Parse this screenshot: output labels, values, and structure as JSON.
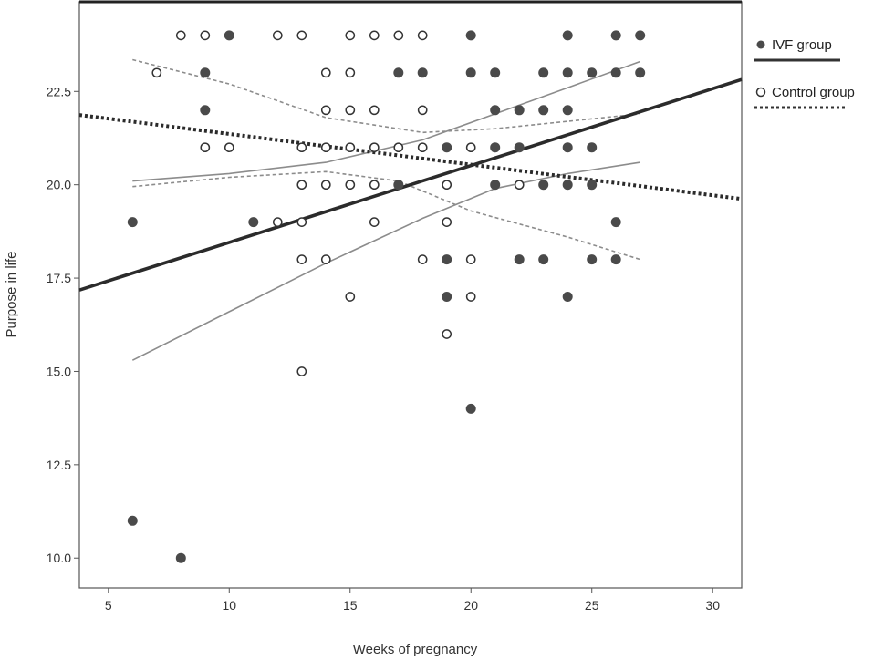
{
  "chart_data": {
    "type": "scatter",
    "xlabel": "Weeks of pregnancy",
    "ylabel": "Purpose in life",
    "xlim": [
      3.8,
      31.2
    ],
    "ylim": [
      9.2,
      24.9
    ],
    "xticks": [
      5,
      10,
      15,
      20,
      25,
      30
    ],
    "yticks": [
      10.0,
      12.5,
      15.0,
      17.5,
      20.0,
      22.5
    ],
    "ytick_labels": [
      "10.0",
      "12.5",
      "15.0",
      "17.5",
      "20.0",
      "22.5"
    ],
    "grid": false,
    "legend_position": "right, outside plot",
    "series": [
      {
        "name": "IVF group",
        "marker": "filled-circle",
        "color": "#4a4a4a",
        "points": [
          [
            10,
            24
          ],
          [
            20,
            24
          ],
          [
            24,
            24
          ],
          [
            26,
            24
          ],
          [
            27,
            24
          ],
          [
            9,
            23
          ],
          [
            17,
            23
          ],
          [
            18,
            23
          ],
          [
            20,
            23
          ],
          [
            21,
            23
          ],
          [
            23,
            23
          ],
          [
            24,
            23
          ],
          [
            25,
            23
          ],
          [
            26,
            23
          ],
          [
            27,
            23
          ],
          [
            9,
            22
          ],
          [
            21,
            22
          ],
          [
            22,
            22
          ],
          [
            23,
            22
          ],
          [
            24,
            22
          ],
          [
            19,
            21
          ],
          [
            21,
            21
          ],
          [
            22,
            21
          ],
          [
            24,
            21
          ],
          [
            25,
            21
          ],
          [
            17,
            20
          ],
          [
            21,
            20
          ],
          [
            23,
            20
          ],
          [
            24,
            20
          ],
          [
            25,
            20
          ],
          [
            6,
            19
          ],
          [
            11,
            19
          ],
          [
            26,
            19
          ],
          [
            19,
            18
          ],
          [
            22,
            18
          ],
          [
            23,
            18
          ],
          [
            25,
            18
          ],
          [
            26,
            18
          ],
          [
            19,
            17
          ],
          [
            24,
            17
          ],
          [
            20,
            14
          ],
          [
            6,
            11
          ],
          [
            8,
            10
          ]
        ],
        "fit": {
          "from": [
            3.8,
            17.18
          ],
          "to": [
            31.2,
            22.82
          ],
          "style": "solid"
        },
        "ci_upper": [
          [
            6,
            20.1
          ],
          [
            10,
            20.3
          ],
          [
            14,
            20.6
          ],
          [
            18,
            21.2
          ],
          [
            21,
            21.9
          ],
          [
            24,
            22.6
          ],
          [
            27,
            23.3
          ]
        ],
        "ci_lower": [
          [
            6,
            15.3
          ],
          [
            10,
            16.6
          ],
          [
            14,
            17.9
          ],
          [
            18,
            19.1
          ],
          [
            21,
            19.9
          ],
          [
            24,
            20.3
          ],
          [
            27,
            20.6
          ]
        ]
      },
      {
        "name": "Control group",
        "marker": "open-circle",
        "color": "#333333",
        "points": [
          [
            8,
            24
          ],
          [
            9,
            24
          ],
          [
            12,
            24
          ],
          [
            13,
            24
          ],
          [
            15,
            24
          ],
          [
            16,
            24
          ],
          [
            17,
            24
          ],
          [
            18,
            24
          ],
          [
            7,
            23
          ],
          [
            14,
            23
          ],
          [
            15,
            23
          ],
          [
            14,
            22
          ],
          [
            15,
            22
          ],
          [
            16,
            22
          ],
          [
            18,
            22
          ],
          [
            9,
            21
          ],
          [
            10,
            21
          ],
          [
            13,
            21
          ],
          [
            14,
            21
          ],
          [
            15,
            21
          ],
          [
            16,
            21
          ],
          [
            17,
            21
          ],
          [
            18,
            21
          ],
          [
            20,
            21
          ],
          [
            13,
            20
          ],
          [
            14,
            20
          ],
          [
            15,
            20
          ],
          [
            16,
            20
          ],
          [
            19,
            20
          ],
          [
            22,
            20
          ],
          [
            12,
            19
          ],
          [
            13,
            19
          ],
          [
            16,
            19
          ],
          [
            19,
            19
          ],
          [
            13,
            18
          ],
          [
            14,
            18
          ],
          [
            18,
            18
          ],
          [
            20,
            18
          ],
          [
            15,
            17
          ],
          [
            20,
            17
          ],
          [
            19,
            16
          ],
          [
            13,
            15
          ]
        ],
        "fit": {
          "from": [
            3.8,
            21.87
          ],
          "to": [
            31.2,
            19.62
          ],
          "style": "dotted"
        },
        "ci_upper": [
          [
            6,
            23.35
          ],
          [
            10,
            22.7
          ],
          [
            14,
            21.8
          ],
          [
            18,
            21.4
          ],
          [
            21,
            21.5
          ],
          [
            24,
            21.7
          ],
          [
            27,
            21.9
          ]
        ],
        "ci_lower": [
          [
            6,
            19.95
          ],
          [
            10,
            20.2
          ],
          [
            14,
            20.35
          ],
          [
            17,
            20.1
          ],
          [
            20,
            19.3
          ],
          [
            24,
            18.6
          ],
          [
            27,
            18.0
          ]
        ]
      }
    ]
  }
}
